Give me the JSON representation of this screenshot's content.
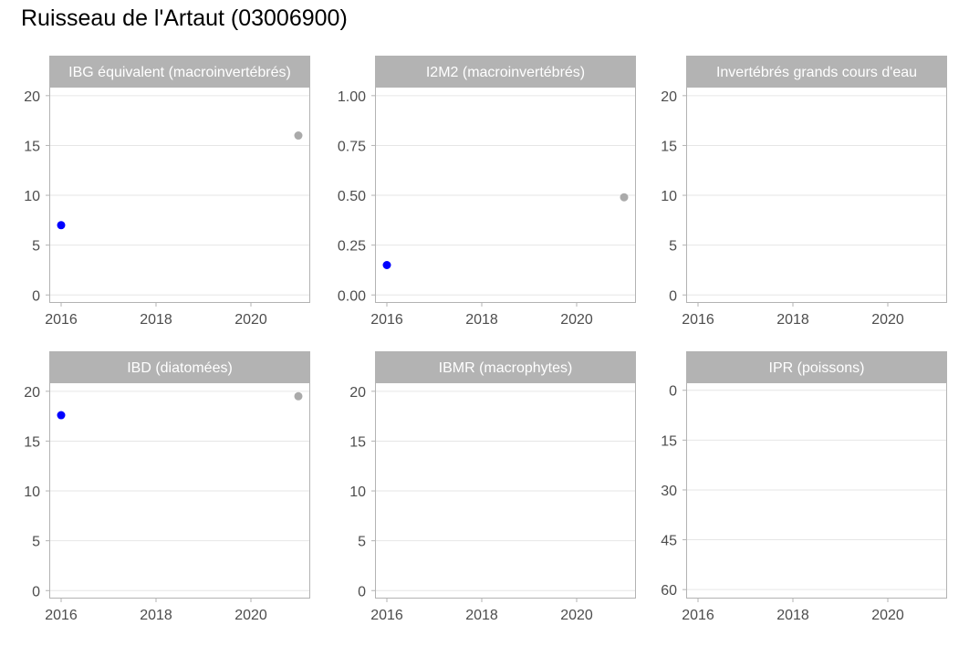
{
  "title": "Ruisseau de l'Artaut (03006900)",
  "colors": {
    "highlight": "#0000ff",
    "muted": "#aaaaaa",
    "strip": "#b3b3b3",
    "grid": "#e6e6e6",
    "border": "#b3b3b3"
  },
  "chart_data": [
    {
      "type": "scatter",
      "title": "IBG équivalent (macroinvertébrés)",
      "x_ticks": [
        "2016",
        "2018",
        "2020"
      ],
      "y_ticks": [
        "0",
        "5",
        "10",
        "15",
        "20"
      ],
      "xlim": [
        2015.75,
        2021.25
      ],
      "ylim": [
        -0.8,
        20.9
      ],
      "y_reversed": false,
      "points": [
        {
          "x": 2016.0,
          "y": 7.0,
          "color": "#0000ff"
        },
        {
          "x": 2021.0,
          "y": 16.0,
          "color": "#aaaaaa"
        }
      ]
    },
    {
      "type": "scatter",
      "title": "I2M2 (macroinvertébrés)",
      "x_ticks": [
        "2016",
        "2018",
        "2020"
      ],
      "y_ticks": [
        "0.00",
        "0.25",
        "0.50",
        "0.75",
        "1.00"
      ],
      "xlim": [
        2015.75,
        2021.25
      ],
      "ylim": [
        -0.04,
        1.045
      ],
      "y_reversed": false,
      "points": [
        {
          "x": 2016.0,
          "y": 0.15,
          "color": "#0000ff"
        },
        {
          "x": 2021.0,
          "y": 0.49,
          "color": "#aaaaaa"
        }
      ]
    },
    {
      "type": "scatter",
      "title": "Invertébrés grands cours d'eau",
      "x_ticks": [
        "2016",
        "2018",
        "2020"
      ],
      "y_ticks": [
        "0",
        "5",
        "10",
        "15",
        "20"
      ],
      "xlim": [
        2015.75,
        2021.25
      ],
      "ylim": [
        -0.8,
        20.9
      ],
      "y_reversed": false,
      "points": []
    },
    {
      "type": "scatter",
      "title": "IBD (diatomées)",
      "x_ticks": [
        "2016",
        "2018",
        "2020"
      ],
      "y_ticks": [
        "0",
        "5",
        "10",
        "15",
        "20"
      ],
      "xlim": [
        2015.75,
        2021.25
      ],
      "ylim": [
        -0.8,
        20.9
      ],
      "y_reversed": false,
      "points": [
        {
          "x": 2016.0,
          "y": 17.6,
          "color": "#0000ff"
        },
        {
          "x": 2021.0,
          "y": 19.5,
          "color": "#aaaaaa"
        }
      ]
    },
    {
      "type": "scatter",
      "title": "IBMR (macrophytes)",
      "x_ticks": [
        "2016",
        "2018",
        "2020"
      ],
      "y_ticks": [
        "0",
        "5",
        "10",
        "15",
        "20"
      ],
      "xlim": [
        2015.75,
        2021.25
      ],
      "ylim": [
        -0.8,
        20.9
      ],
      "y_reversed": false,
      "points": []
    },
    {
      "type": "scatter",
      "title": "IPR (poissons)",
      "x_ticks": [
        "2016",
        "2018",
        "2020"
      ],
      "y_ticks": [
        "0",
        "15",
        "30",
        "45",
        "60"
      ],
      "xlim": [
        2015.75,
        2021.25
      ],
      "ylim": [
        -2.4,
        62.7
      ],
      "y_reversed": true,
      "points": []
    }
  ]
}
